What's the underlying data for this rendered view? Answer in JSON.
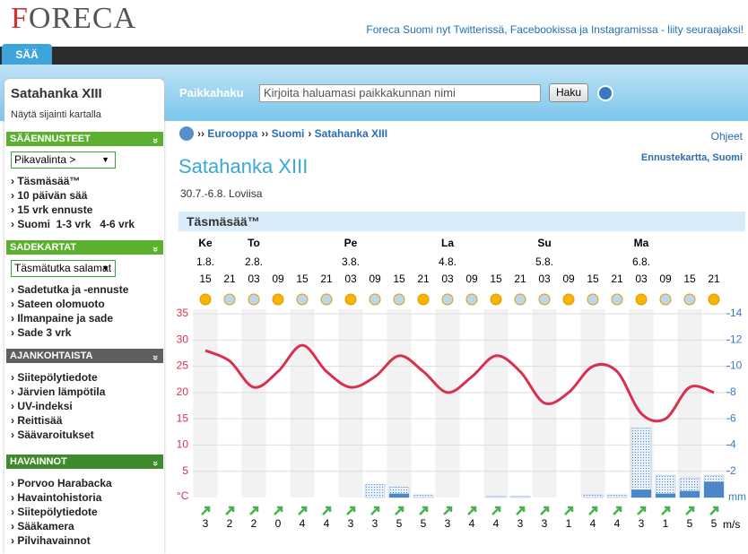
{
  "header": {
    "logo": "FORECA",
    "tagline": "Foreca Suomi nyt Twitterissä, Facebookissa ja Instagramissa - liity seuraajaksi!",
    "tab": "SÄÄ"
  },
  "search": {
    "label": "Paikkahaku",
    "placeholder": "Kirjoita haluamasi paikkakunnan nimi",
    "button": "Haku"
  },
  "sidebar": {
    "location": "Satahanka XIII",
    "map_link": "Näytä sijainti kartalla",
    "sections": [
      {
        "title": "SÄÄENNUSTEET",
        "select": "Pikavalinta >",
        "links": [
          "Täsmäsää™",
          "10 päivän sää",
          "15 vrk ennuste",
          "Suomi  1-3 vrk   4-6 vrk"
        ]
      },
      {
        "title": "SADEKARTAT",
        "select": "Täsmätutka salamat",
        "links": [
          "Sadetutka ja -ennuste",
          "Sateen olomuoto",
          "Ilmanpaine ja sade",
          "Sade 3 vrk"
        ]
      },
      {
        "title": "AJANKOHTAISTA",
        "links": [
          "Siitepölytiedote",
          "Järvien lämpötila",
          "UV-indeksi",
          "Reittisää",
          "Säävaroitukset"
        ]
      },
      {
        "title": "HAVAINNOT",
        "links": [
          "Porvoo Harabacka",
          "Havaintohistoria",
          "Siitepölytiedote",
          "Sääkamera",
          "Pilvihavainnot"
        ]
      }
    ]
  },
  "breadcrumb": [
    "Eurooppa",
    "Suomi",
    "Satahanka XIII"
  ],
  "help": "Ohjeet",
  "page": {
    "title": "Satahanka XIII",
    "subtitle": "30.7.-6.8. Loviisa",
    "map_link": "Ennustekartta, Suomi"
  },
  "chart_data": {
    "type": "line",
    "title": "Täsmäsää™",
    "days": [
      "Ke",
      null,
      "To",
      null,
      null,
      null,
      "Pe",
      null,
      null,
      null,
      "La",
      null,
      null,
      null,
      "Su",
      null,
      null,
      null,
      "Ma",
      null,
      null,
      null
    ],
    "dates": [
      "1.8.",
      null,
      "2.8.",
      null,
      null,
      null,
      "3.8.",
      null,
      null,
      null,
      "4.8.",
      null,
      null,
      null,
      "5.8.",
      null,
      null,
      null,
      "6.8.",
      null,
      null,
      null
    ],
    "categories": [
      "15",
      "21",
      "03",
      "09",
      "15",
      "21",
      "03",
      "09",
      "15",
      "21",
      "03",
      "09",
      "15",
      "21",
      "03",
      "09",
      "15",
      "21",
      "03",
      "09",
      "15",
      "21"
    ],
    "series": [
      {
        "color": "#d9304f",
        "values": [
          28,
          26,
          21,
          24,
          29,
          24,
          21,
          23,
          27,
          24,
          20,
          23,
          27,
          24,
          18,
          20,
          25,
          24,
          16,
          15,
          21,
          20
        ]
      },
      {
        "color": "#8fb3e0",
        "axis": "y2",
        "values": [
          0,
          0,
          0,
          0,
          0,
          0,
          0,
          1,
          0.8,
          0.2,
          0,
          0,
          0.1,
          0.1,
          0,
          0,
          0.2,
          0.2,
          5.3,
          1.7,
          1.5,
          1.7
        ]
      },
      {
        "color": "#4a86c8",
        "axis": "y2",
        "values": [
          0,
          0,
          0,
          0,
          0,
          0,
          0,
          0,
          0.3,
          0,
          0,
          0,
          0,
          0,
          0,
          0,
          0,
          0,
          0.6,
          0.3,
          0.5,
          1.2
        ]
      }
    ],
    "ylim": [
      0,
      35
    ],
    "yticks": [
      5,
      10,
      15,
      20,
      25,
      30,
      35
    ],
    "y_unit": "°C",
    "y2lim": [
      0,
      14
    ],
    "y2ticks": [
      2,
      4,
      6,
      8,
      10,
      12,
      14
    ],
    "y2_unit": "mm",
    "wind": {
      "values": [
        3,
        2,
        2,
        0,
        4,
        4,
        3,
        3,
        5,
        5,
        3,
        4,
        4,
        3,
        3,
        1,
        4,
        4,
        3,
        1,
        5,
        5
      ],
      "unit": "m/s"
    },
    "grid": true
  }
}
